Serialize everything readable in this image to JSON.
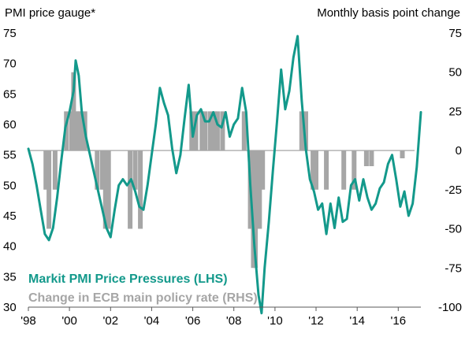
{
  "chart_data": {
    "type": "line",
    "left_axis_title": "PMI price gauge*",
    "right_axis_title": "Monthly basis point change",
    "left_ylim": [
      30,
      75
    ],
    "right_ylim": [
      -100,
      75
    ],
    "left_ticks": [
      "75",
      "70",
      "65",
      "60",
      "55",
      "50",
      "45",
      "40",
      "35",
      "30"
    ],
    "right_ticks": [
      "75",
      "50",
      "25",
      "0",
      "-25",
      "-50",
      "-75",
      "-100"
    ],
    "x_ticks": [
      "'98",
      "'00",
      "'02",
      "'04",
      "'06",
      "'08",
      "'10",
      "'12",
      "'14",
      "'16"
    ],
    "x_tick_years": [
      1998,
      2000,
      2002,
      2004,
      2006,
      2008,
      2010,
      2012,
      2014,
      2016
    ],
    "xlim": [
      1998.0,
      2017.1
    ],
    "colors": {
      "pmi_line": "#13998b",
      "ecb_bars": "#a6a6a6",
      "zero_line": "#a6a6a6",
      "axis": "#595959",
      "text": "#000000"
    },
    "legend": [
      {
        "label": "Markit PMI Price Pressures (LHS)",
        "color": "#13998b"
      },
      {
        "label": "Change in ECB main policy rate (RHS)",
        "color": "#a6a6a6"
      }
    ],
    "series": [
      {
        "name": "Markit PMI Price Pressures (LHS)",
        "axis": "left",
        "x": [
          1998.0,
          1998.2,
          1998.4,
          1998.6,
          1998.8,
          1999.0,
          1999.2,
          1999.4,
          1999.6,
          1999.8,
          2000.0,
          2000.2,
          2000.3,
          2000.45,
          2000.6,
          2000.8,
          2001.0,
          2001.2,
          2001.4,
          2001.6,
          2001.8,
          2002.0,
          2002.2,
          2002.4,
          2002.6,
          2002.8,
          2003.0,
          2003.2,
          2003.4,
          2003.6,
          2003.8,
          2004.0,
          2004.2,
          2004.4,
          2004.6,
          2004.8,
          2005.0,
          2005.2,
          2005.4,
          2005.6,
          2005.8,
          2006.0,
          2006.2,
          2006.4,
          2006.6,
          2006.8,
          2007.0,
          2007.2,
          2007.4,
          2007.6,
          2007.8,
          2008.0,
          2008.2,
          2008.4,
          2008.6,
          2008.8,
          2009.0,
          2009.2,
          2009.35,
          2009.5,
          2009.7,
          2009.9,
          2010.1,
          2010.3,
          2010.5,
          2010.7,
          2010.9,
          2011.1,
          2011.3,
          2011.5,
          2011.7,
          2011.9,
          2012.1,
          2012.3,
          2012.5,
          2012.7,
          2012.9,
          2013.1,
          2013.3,
          2013.5,
          2013.7,
          2013.9,
          2014.1,
          2014.3,
          2014.5,
          2014.7,
          2014.9,
          2015.1,
          2015.3,
          2015.5,
          2015.7,
          2015.9,
          2016.1,
          2016.3,
          2016.5,
          2016.7,
          2016.9,
          2017.1
        ],
        "values": [
          56.0,
          53.5,
          50.0,
          46.0,
          42.0,
          41.0,
          43.0,
          48.0,
          54.0,
          59.5,
          62.0,
          65.5,
          70.5,
          68.0,
          62.0,
          58.0,
          55.0,
          52.0,
          49.0,
          46.0,
          43.0,
          41.5,
          46.0,
          50.0,
          51.0,
          50.0,
          51.0,
          49.0,
          46.5,
          46.0,
          50.0,
          55.0,
          60.0,
          66.0,
          63.5,
          61.5,
          56.0,
          52.0,
          55.0,
          61.0,
          66.5,
          58.0,
          61.5,
          62.5,
          60.5,
          60.5,
          62.0,
          60.0,
          59.5,
          62.0,
          58.0,
          60.0,
          61.0,
          66.0,
          62.0,
          50.0,
          40.0,
          32.0,
          29.0,
          36.5,
          44.0,
          52.5,
          60.5,
          69.0,
          62.5,
          65.5,
          71.0,
          74.5,
          64.0,
          56.0,
          51.0,
          49.0,
          46.0,
          47.0,
          42.0,
          47.0,
          43.0,
          48.0,
          44.0,
          44.5,
          50.0,
          51.0,
          47.5,
          51.0,
          48.0,
          46.0,
          47.0,
          49.5,
          50.5,
          53.5,
          55.0,
          51.0,
          46.5,
          49.0,
          45.0,
          47.0,
          53.0,
          62.0
        ]
      },
      {
        "name": "Change in ECB main policy rate (RHS)",
        "axis": "right",
        "type": "bar",
        "x": [
          1998.85,
          1999.0,
          1999.3,
          1999.85,
          2000.1,
          2000.2,
          2000.35,
          2000.45,
          2000.55,
          2000.75,
          2001.35,
          2001.6,
          2001.75,
          2001.9,
          2002.95,
          2003.2,
          2003.45,
          2005.95,
          2006.15,
          2006.45,
          2006.6,
          2006.85,
          2007.05,
          2007.2,
          2007.45,
          2008.5,
          2008.8,
          2008.95,
          2009.05,
          2009.25,
          2009.4,
          2011.3,
          2011.5,
          2011.85,
          2012.0,
          2012.5,
          2013.35,
          2013.85,
          2014.45,
          2014.7,
          2016.2
        ],
        "values": [
          -25,
          -50,
          -25,
          25,
          25,
          50,
          25,
          25,
          25,
          25,
          -25,
          -25,
          -50,
          -50,
          -50,
          -25,
          -50,
          25,
          25,
          25,
          25,
          25,
          25,
          25,
          25,
          25,
          -50,
          -75,
          -75,
          -50,
          -25,
          25,
          25,
          -25,
          -25,
          -25,
          -25,
          -25,
          -10,
          -10,
          -5
        ]
      }
    ]
  }
}
